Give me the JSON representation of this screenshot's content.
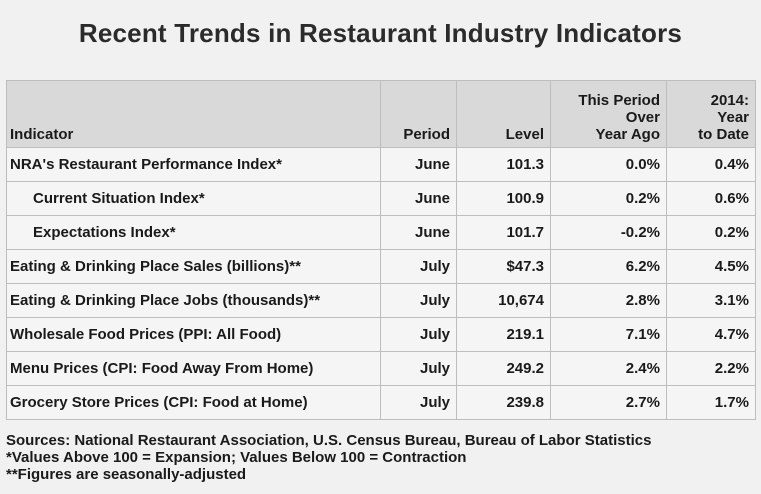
{
  "title": "Recent Trends in Restaurant Industry Indicators",
  "table": {
    "headers": {
      "indicator": "Indicator",
      "period": "Period",
      "level": "Level",
      "yoy": [
        "This Period",
        "Over",
        "Year Ago"
      ],
      "ytd": [
        "2014:",
        "Year",
        "to Date"
      ]
    },
    "rows": [
      {
        "indicator": "NRA's Restaurant Performance Index*",
        "period": "June",
        "level": "101.3",
        "yoy": "0.0%",
        "ytd": "0.4%",
        "sub": false
      },
      {
        "indicator": "Current Situation Index*",
        "period": "June",
        "level": "100.9",
        "yoy": "0.2%",
        "ytd": "0.6%",
        "sub": true
      },
      {
        "indicator": "Expectations Index*",
        "period": "June",
        "level": "101.7",
        "yoy": "-0.2%",
        "ytd": "0.2%",
        "sub": true
      },
      {
        "indicator": "Eating & Drinking Place Sales (billions)**",
        "period": "July",
        "level": "$47.3",
        "yoy": "6.2%",
        "ytd": "4.5%",
        "sub": false
      },
      {
        "indicator": "Eating & Drinking Place Jobs (thousands)**",
        "period": "July",
        "level": "10,674",
        "yoy": "2.8%",
        "ytd": "3.1%",
        "sub": false
      },
      {
        "indicator": "Wholesale Food Prices (PPI: All Food)",
        "period": "July",
        "level": "219.1",
        "yoy": "7.1%",
        "ytd": "4.7%",
        "sub": false
      },
      {
        "indicator": "Menu Prices (CPI: Food Away From Home)",
        "period": "July",
        "level": "249.2",
        "yoy": "2.4%",
        "ytd": "2.2%",
        "sub": false
      },
      {
        "indicator": "Grocery Store Prices (CPI: Food at Home)",
        "period": "July",
        "level": "239.8",
        "yoy": "2.7%",
        "ytd": "1.7%",
        "sub": false
      }
    ]
  },
  "notes": {
    "sources": "Sources: National Restaurant Association, U.S. Census Bureau, Bureau of Labor Statistics",
    "note1": "*Values Above 100 = Expansion; Values Below 100 = Contraction",
    "note2": "**Figures are seasonally-adjusted"
  }
}
